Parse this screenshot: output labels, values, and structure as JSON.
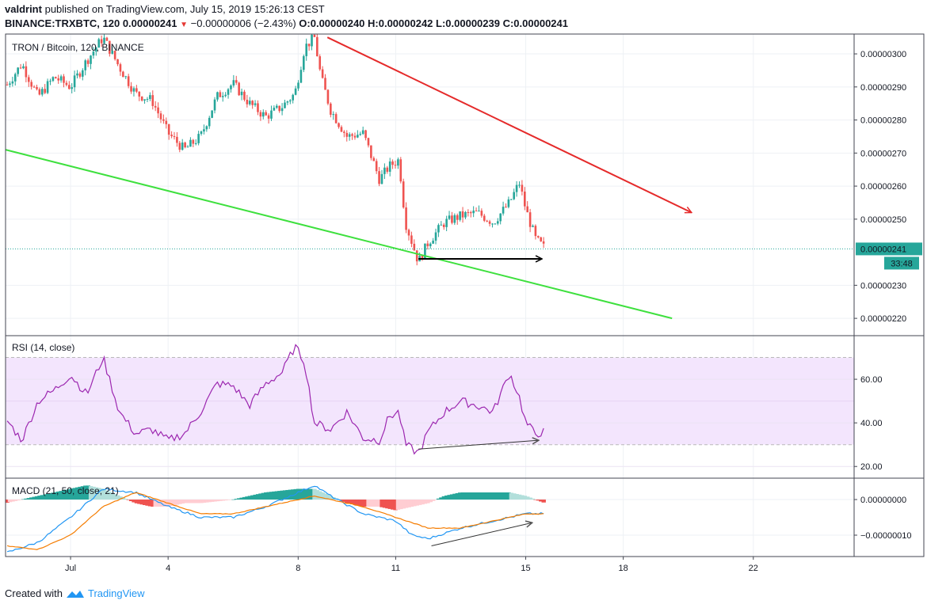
{
  "header": {
    "author": "valdrint",
    "published_text": "published on TradingView.com, July 15, 2019 15:26:13 CEST",
    "symbol": "BINANCE:TRXBTC, 120",
    "last_price": "0.00000241",
    "change": "−0.00000006 (−2.43%)",
    "ohlc": "O:0.00000240 H:0.00000242 L:0.00000239 C:0.00000241"
  },
  "footer": {
    "created_with": "Created with",
    "brand": "TradingView"
  },
  "colors": {
    "up": "#26a69a",
    "down": "#ef5350",
    "resistance": "#e52a2a",
    "support": "#3ee03e",
    "rsi": "#9c27b0",
    "rsi_band": "#f3e5fd",
    "macd": "#2196f3",
    "signal": "#f57c00"
  },
  "chart_data": [
    {
      "type": "candlestick",
      "title": "TRON / Bitcoin, 120, BINANCE",
      "ylim": [
        2.15e-06,
        3.06e-06
      ],
      "y_ticks": [
        "0.00000300",
        "0.00000290",
        "0.00000280",
        "0.00000270",
        "0.00000260",
        "0.00000250",
        "0.00000230",
        "0.00000220"
      ],
      "y_tick_values": [
        3e-06,
        2.9e-06,
        2.8e-06,
        2.7e-06,
        2.6e-06,
        2.5e-06,
        2.3e-06,
        2.2e-06
      ],
      "x_ticks": [
        "Jul",
        "4",
        "8",
        "11",
        "15",
        "18",
        "22"
      ],
      "x_tick_days": [
        1,
        4,
        8,
        11,
        15,
        18,
        22
      ],
      "x_range_days": [
        -1.0,
        25.1
      ],
      "last_value": 2.41e-06,
      "last_value_label": "0.00000241",
      "countdown": "33:48",
      "anchors": [
        [
          -1.0,
          2.9e-06
        ],
        [
          -0.5,
          2.97e-06
        ],
        [
          0.0,
          2.87e-06
        ],
        [
          0.5,
          2.93e-06
        ],
        [
          1.0,
          2.9e-06
        ],
        [
          1.5,
          2.98e-06
        ],
        [
          2.0,
          3.05e-06
        ],
        [
          2.5,
          2.96e-06
        ],
        [
          3.0,
          2.88e-06
        ],
        [
          3.5,
          2.86e-06
        ],
        [
          4.0,
          2.76e-06
        ],
        [
          4.5,
          2.71e-06
        ],
        [
          5.0,
          2.75e-06
        ],
        [
          5.5,
          2.87e-06
        ],
        [
          6.0,
          2.91e-06
        ],
        [
          6.5,
          2.85e-06
        ],
        [
          7.0,
          2.81e-06
        ],
        [
          7.5,
          2.84e-06
        ],
        [
          7.9,
          2.88e-06
        ],
        [
          8.2,
          3.02e-06
        ],
        [
          8.5,
          3.05e-06
        ],
        [
          8.7,
          2.93e-06
        ],
        [
          9.0,
          2.83e-06
        ],
        [
          9.5,
          2.75e-06
        ],
        [
          10.0,
          2.76e-06
        ],
        [
          10.5,
          2.62e-06
        ],
        [
          10.8,
          2.66e-06
        ],
        [
          11.1,
          2.68e-06
        ],
        [
          11.3,
          2.49e-06
        ],
        [
          11.7,
          2.37e-06
        ],
        [
          12.0,
          2.43e-06
        ],
        [
          12.5,
          2.49e-06
        ],
        [
          13.0,
          2.51e-06
        ],
        [
          13.5,
          2.52e-06
        ],
        [
          14.0,
          2.49e-06
        ],
        [
          14.5,
          2.55e-06
        ],
        [
          14.8,
          2.61e-06
        ],
        [
          15.0,
          2.53e-06
        ],
        [
          15.3,
          2.44e-06
        ],
        [
          15.6,
          2.41e-06
        ]
      ],
      "annotations": {
        "resistance_arrow": {
          "from": [
            8.9,
            3.05e-06
          ],
          "to": [
            20.1,
            2.52e-06
          ]
        },
        "support_line": {
          "from": [
            -1.0,
            2.71e-06
          ],
          "to": [
            19.5,
            2.2e-06
          ]
        },
        "horizontal_arrow": {
          "from": [
            11.7,
            2.38e-06
          ],
          "to": [
            15.5,
            2.38e-06
          ]
        }
      }
    },
    {
      "type": "line",
      "title": "RSI (14, close)",
      "ylim": [
        15,
        80
      ],
      "y_ticks": [
        "60.00",
        "40.00",
        "20.00"
      ],
      "y_tick_values": [
        60,
        40,
        20
      ],
      "band": [
        30,
        70
      ],
      "anchors": [
        [
          -1.0,
          42
        ],
        [
          -0.5,
          32
        ],
        [
          0.0,
          50
        ],
        [
          0.5,
          55
        ],
        [
          1.0,
          62
        ],
        [
          1.5,
          53
        ],
        [
          2.0,
          70
        ],
        [
          2.5,
          45
        ],
        [
          3.0,
          35
        ],
        [
          3.5,
          37
        ],
        [
          4.0,
          32
        ],
        [
          4.5,
          35
        ],
        [
          5.0,
          45
        ],
        [
          5.5,
          58
        ],
        [
          6.0,
          57
        ],
        [
          6.5,
          48
        ],
        [
          7.0,
          58
        ],
        [
          7.5,
          63
        ],
        [
          7.9,
          75
        ],
        [
          8.2,
          68
        ],
        [
          8.5,
          40
        ],
        [
          9.0,
          37
        ],
        [
          9.5,
          45
        ],
        [
          10.0,
          33
        ],
        [
          10.5,
          32
        ],
        [
          10.8,
          43
        ],
        [
          11.1,
          45
        ],
        [
          11.3,
          30
        ],
        [
          11.7,
          26
        ],
        [
          12.0,
          36
        ],
        [
          12.5,
          45
        ],
        [
          13.0,
          50
        ],
        [
          13.5,
          48
        ],
        [
          14.0,
          45
        ],
        [
          14.5,
          63
        ],
        [
          14.8,
          52
        ],
        [
          15.0,
          40
        ],
        [
          15.3,
          35
        ],
        [
          15.6,
          36
        ]
      ],
      "annotations": {
        "divergence_arrow": {
          "from": [
            11.7,
            28
          ],
          "to": [
            15.4,
            32
          ]
        }
      }
    },
    {
      "type": "macd",
      "title": "MACD (21, 50, close, 21)",
      "ylim": [
        -1.6e-07,
        6e-08
      ],
      "y_ticks": [
        "0.00000000",
        "−0.00000010"
      ],
      "y_tick_values": [
        0,
        -1e-07
      ],
      "series": [
        {
          "name": "MACD",
          "anchors": [
            [
              -1.0,
              -1.5e-07
            ],
            [
              0.0,
              -1.2e-07
            ],
            [
              1.0,
              -5e-08
            ],
            [
              2.0,
              3e-08
            ],
            [
              3.0,
              2e-08
            ],
            [
              4.0,
              -2e-08
            ],
            [
              5.0,
              -5e-08
            ],
            [
              6.0,
              -5e-08
            ],
            [
              7.0,
              -2e-08
            ],
            [
              8.0,
              2e-08
            ],
            [
              8.5,
              4e-08
            ],
            [
              9.0,
              1e-08
            ],
            [
              10.0,
              -4e-08
            ],
            [
              11.0,
              -6e-08
            ],
            [
              11.5,
              -1e-07
            ],
            [
              12.0,
              -1.1e-07
            ],
            [
              13.0,
              -8e-08
            ],
            [
              14.0,
              -6e-08
            ],
            [
              15.0,
              -4e-08
            ],
            [
              15.6,
              -4e-08
            ]
          ]
        },
        {
          "name": "Signal",
          "anchors": [
            [
              -1.0,
              -1.3e-07
            ],
            [
              0.0,
              -1.4e-07
            ],
            [
              1.0,
              -1e-07
            ],
            [
              2.0,
              -2e-08
            ],
            [
              3.0,
              2e-08
            ],
            [
              4.0,
              -1e-08
            ],
            [
              5.0,
              -4e-08
            ],
            [
              6.0,
              -4e-08
            ],
            [
              7.0,
              -2e-08
            ],
            [
              8.0,
              0
            ],
            [
              8.5,
              1e-08
            ],
            [
              9.0,
              0
            ],
            [
              10.0,
              -2e-08
            ],
            [
              11.0,
              -5e-08
            ],
            [
              12.0,
              -8e-08
            ],
            [
              13.0,
              -8e-08
            ],
            [
              14.0,
              -6e-08
            ],
            [
              15.0,
              -4e-08
            ],
            [
              15.6,
              -4e-08
            ]
          ]
        },
        {
          "name": "Histogram",
          "anchors": [
            [
              -1.0,
              -1e-08
            ],
            [
              0.0,
              1e-08
            ],
            [
              1.0,
              3e-08
            ],
            [
              1.5,
              4e-08
            ],
            [
              2.0,
              3e-08
            ],
            [
              2.5,
              1e-08
            ],
            [
              3.0,
              -1e-08
            ],
            [
              3.5,
              -2e-08
            ],
            [
              4.0,
              -2e-08
            ],
            [
              4.5,
              -1e-08
            ],
            [
              5.0,
              -1e-08
            ],
            [
              6.0,
              0
            ],
            [
              6.5,
              1e-08
            ],
            [
              7.0,
              2e-08
            ],
            [
              8.0,
              3e-08
            ],
            [
              8.5,
              3e-08
            ],
            [
              9.0,
              1e-08
            ],
            [
              9.5,
              -1e-08
            ],
            [
              10.0,
              -2e-08
            ],
            [
              10.5,
              -2e-08
            ],
            [
              11.0,
              -3e-08
            ],
            [
              11.5,
              -2e-08
            ],
            [
              12.0,
              -1e-08
            ],
            [
              12.5,
              1e-08
            ],
            [
              13.0,
              2e-08
            ],
            [
              13.5,
              2e-08
            ],
            [
              14.0,
              2e-08
            ],
            [
              14.5,
              2e-08
            ],
            [
              15.0,
              1e-08
            ],
            [
              15.6,
              -1e-08
            ]
          ]
        }
      ],
      "annotations": {
        "divergence_arrow": {
          "from": [
            12.1,
            -1.3e-07
          ],
          "to": [
            15.2,
            -6.5e-08
          ]
        }
      }
    }
  ]
}
